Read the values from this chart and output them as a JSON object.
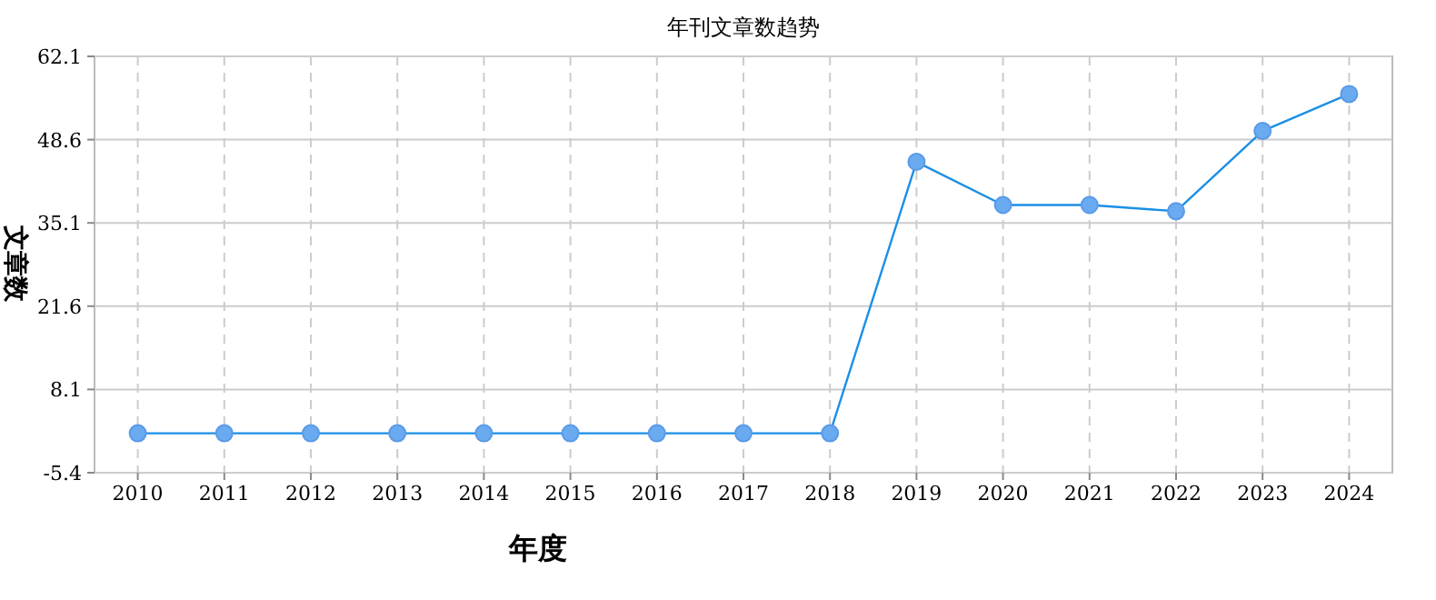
{
  "chart_data": {
    "type": "line",
    "title": "年刊文章数趋势",
    "xlabel": "年度",
    "ylabel": "文章数",
    "categories": [
      "2010",
      "2011",
      "2012",
      "2013",
      "2014",
      "2015",
      "2016",
      "2017",
      "2018",
      "2019",
      "2020",
      "2021",
      "2022",
      "2023",
      "2024"
    ],
    "series": [
      {
        "color": "#1a8fe6",
        "values": [
          1,
          1,
          1,
          1,
          1,
          1,
          1,
          1,
          1,
          45,
          38,
          38,
          37,
          50,
          56
        ]
      }
    ],
    "ylim": [
      -5.4,
      62.1
    ],
    "yticks": [
      -5.4,
      8.1,
      21.6,
      35.1,
      48.6,
      62.1
    ],
    "grid": true,
    "marker": "circle"
  }
}
